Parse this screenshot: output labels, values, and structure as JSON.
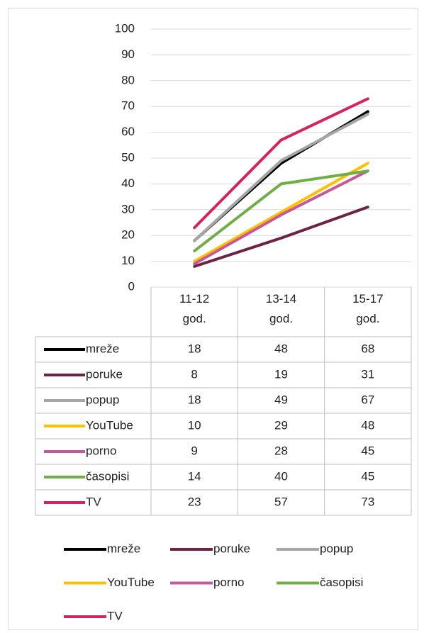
{
  "chart_data": {
    "type": "line",
    "categories": [
      "11-12 god.",
      "13-14 god.",
      "15-17 god."
    ],
    "series": [
      {
        "name": "mreže",
        "color": "#000000",
        "values": [
          18,
          48,
          68
        ]
      },
      {
        "name": "poruke",
        "color": "#6b2346",
        "values": [
          8,
          19,
          31
        ]
      },
      {
        "name": "popup",
        "color": "#a6a6a6",
        "values": [
          18,
          49,
          67
        ]
      },
      {
        "name": "YouTube",
        "color": "#ffc000",
        "values": [
          10,
          29,
          48
        ]
      },
      {
        "name": "porno",
        "color": "#c55a9a",
        "values": [
          9,
          28,
          45
        ]
      },
      {
        "name": "časopisi",
        "color": "#70ad47",
        "values": [
          14,
          40,
          45
        ]
      },
      {
        "name": "TV",
        "color": "#d6225f",
        "values": [
          23,
          57,
          73
        ]
      }
    ],
    "ylim": [
      0,
      100
    ],
    "yticks": [
      0,
      10,
      20,
      30,
      40,
      50,
      60,
      70,
      80,
      90,
      100
    ],
    "grid": true,
    "legend": "bottom",
    "data_table": true
  }
}
